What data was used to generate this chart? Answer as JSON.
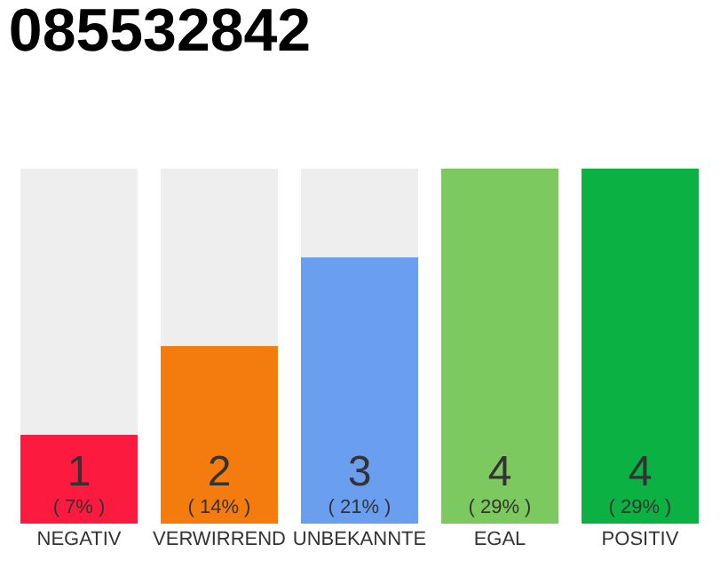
{
  "chart_data": {
    "type": "bar",
    "title": "085532842",
    "categories": [
      "NEGATIV",
      "VERWIRREND",
      "UNBEKANNTE",
      "EGAL",
      "POSITIV"
    ],
    "stacked": true,
    "ylim": [
      0,
      4
    ],
    "tick_labels": "x",
    "series": [
      {
        "colors": [
          "#fc1a3f",
          "#f47c0f",
          "#6a9ff0",
          "#7cc95f",
          "#0bb143"
        ],
        "values": [
          1,
          2,
          3,
          4,
          4
        ],
        "value_labels": [
          "1\n( 7% )",
          "2\n( 14% )",
          "3\n( 21% )",
          "4\n( 29% )",
          "4\n( 29% )"
        ]
      },
      {
        "color": "#eeeeee",
        "values": [
          3,
          2,
          1,
          0,
          0
        ]
      }
    ]
  }
}
